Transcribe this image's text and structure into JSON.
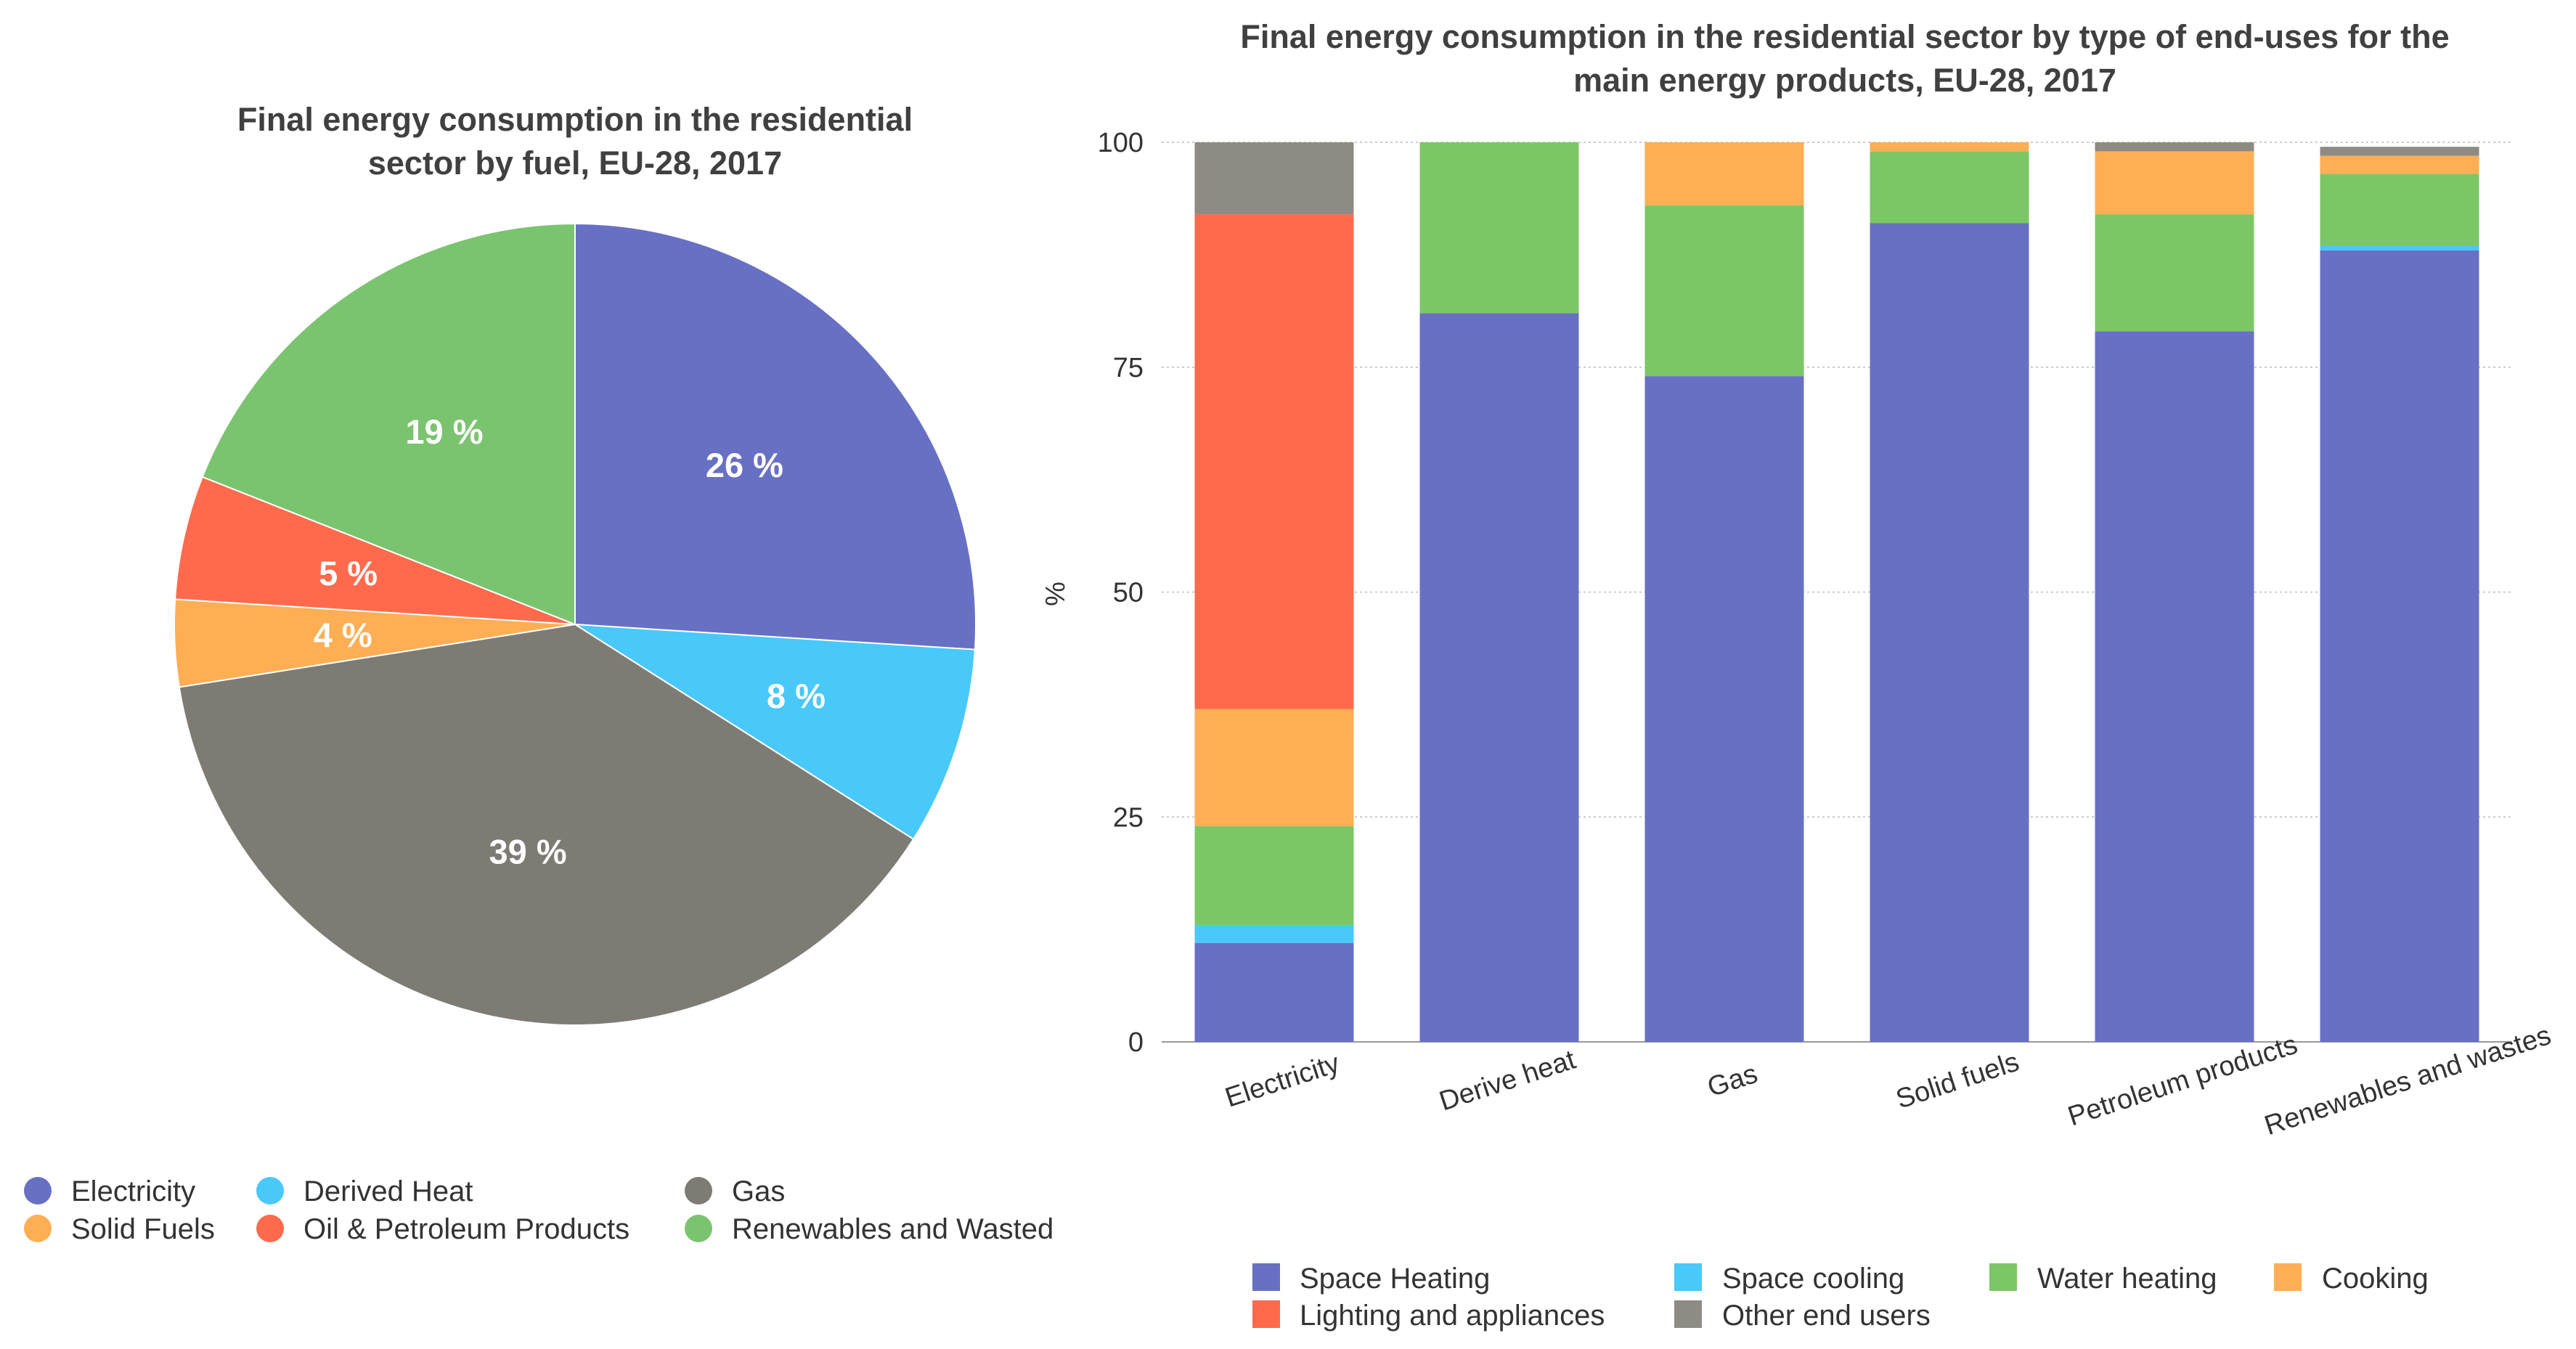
{
  "colors": {
    "electricity": "#6870C4",
    "derived_heat": "#49C8FA",
    "gas": "#7E7B75",
    "solid_fuels": "#FFAE54",
    "oil": "#FF6A4D",
    "renewables": "#7BC46F",
    "space_heating": "#6870C4",
    "space_cooling": "#49C8FA",
    "water_heating": "#7CC765",
    "cooking": "#FFAE54",
    "lighting": "#FF6A4D",
    "other": "#8E8B85",
    "grid": "#BBBBBB"
  },
  "chart_data": [
    {
      "type": "pie",
      "title": [
        "Final energy consumption in the residential",
        "sector by fuel, EU-28, 2017"
      ],
      "slices": [
        {
          "name": "Electricity",
          "value": 26,
          "label": "26 %",
          "color": "#6870C4"
        },
        {
          "name": "Derived Heat",
          "value": 8,
          "label": "8 %",
          "color": "#49C8FA"
        },
        {
          "name": "Gas",
          "value": 38.5,
          "label": "39 %",
          "color": "#7E7B75"
        },
        {
          "name": "Solid Fuels",
          "value": 3.5,
          "label": "4 %",
          "color": "#FFAE54"
        },
        {
          "name": "Oil & Petroleum Products",
          "value": 5,
          "label": "5 %",
          "color": "#FF6A4D"
        },
        {
          "name": "Renewables and Wasted",
          "value": 19,
          "label": "19 %",
          "color": "#7BC46F"
        }
      ],
      "legend": [
        "Electricity",
        "Derived Heat",
        "Gas",
        "Solid Fuels",
        "Oil & Petroleum Products",
        "Renewables and Wasted"
      ],
      "legend_position": "bottom"
    },
    {
      "type": "bar",
      "stacked": true,
      "title": [
        "Final energy consumption in the residential sector by type of end-uses for the",
        "main energy products, EU-28, 2017"
      ],
      "ylabel": "%",
      "xlabel": "",
      "ylim": [
        0,
        100
      ],
      "yticks": [
        0,
        25,
        50,
        75,
        100
      ],
      "categories": [
        "Electricity",
        "Derive heat",
        "Gas",
        "Solid fuels",
        "Petroleum products",
        "Renewables and wastes"
      ],
      "series": [
        {
          "name": "Space Heating",
          "color": "#6870C4",
          "values": [
            11,
            81,
            74,
            91,
            79,
            88
          ]
        },
        {
          "name": "Space cooling",
          "color": "#49C8FA",
          "values": [
            2,
            0,
            0,
            0,
            0,
            0.5
          ]
        },
        {
          "name": "Water heating",
          "color": "#7CC765",
          "values": [
            11,
            19,
            19,
            8,
            13,
            8
          ]
        },
        {
          "name": "Cooking",
          "color": "#FFAE54",
          "values": [
            13,
            0,
            7,
            1,
            7,
            2
          ]
        },
        {
          "name": "Lighting and appliances",
          "color": "#FF6A4D",
          "values": [
            55,
            0,
            0,
            0,
            0,
            0
          ]
        },
        {
          "name": "Other end users",
          "color": "#8E8B85",
          "values": [
            8,
            0,
            0,
            0,
            1,
            1
          ]
        }
      ],
      "legend": [
        "Space Heating",
        "Space cooling",
        "Water heating",
        "Cooking",
        "Lighting and appliances",
        "Other end users"
      ],
      "legend_position": "bottom",
      "grid": true
    }
  ]
}
